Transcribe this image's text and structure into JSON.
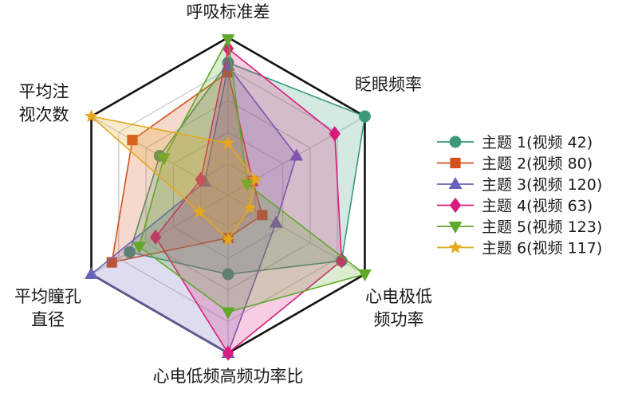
{
  "chart_data": {
    "type": "radar",
    "axes": [
      "呼吸标准差",
      "眨眼频率",
      "心电极低频功率",
      "心电低频高频功率比",
      "平均瞳孔直径",
      "平均注视次数"
    ],
    "axis_label_lines": [
      [
        "呼吸标准差"
      ],
      [
        "眨眼频率"
      ],
      [
        "心电极低",
        "频功率"
      ],
      [
        "心电低频高频功率比"
      ],
      [
        "平均瞳孔",
        "直径"
      ],
      [
        "平均注",
        "视次数"
      ]
    ],
    "range": [
      0,
      1
    ],
    "grid_levels": 5,
    "legend_position": "right",
    "series": [
      {
        "name": "主题 1(视频 42)",
        "color": "#3a9a79",
        "marker": "circle",
        "values": [
          0.84,
          1.0,
          0.83,
          0.5,
          0.72,
          0.5
        ]
      },
      {
        "name": "主题 2(视频 80)",
        "color": "#d4501c",
        "marker": "square",
        "values": [
          0.78,
          0.18,
          0.25,
          0.27,
          0.85,
          0.7
        ]
      },
      {
        "name": "主题 3(视频 120)",
        "color": "#6a62b8",
        "marker": "triangle-up",
        "values": [
          0.82,
          0.5,
          0.35,
          1.0,
          1.0,
          0.17
        ]
      },
      {
        "name": "主题 4(视频 63)",
        "color": "#d81b7c",
        "marker": "diamond",
        "values": [
          0.93,
          0.78,
          0.83,
          1.0,
          0.53,
          0.2
        ]
      },
      {
        "name": "主题 5(视频 123)",
        "color": "#5fa82a",
        "marker": "triangle-down",
        "values": [
          0.99,
          0.14,
          1.0,
          0.74,
          0.65,
          0.47
        ]
      },
      {
        "name": "主题 6(视频 117)",
        "color": "#e3a81e",
        "marker": "star",
        "values": [
          0.33,
          0.2,
          0.16,
          0.28,
          0.21,
          1.0
        ]
      }
    ]
  }
}
